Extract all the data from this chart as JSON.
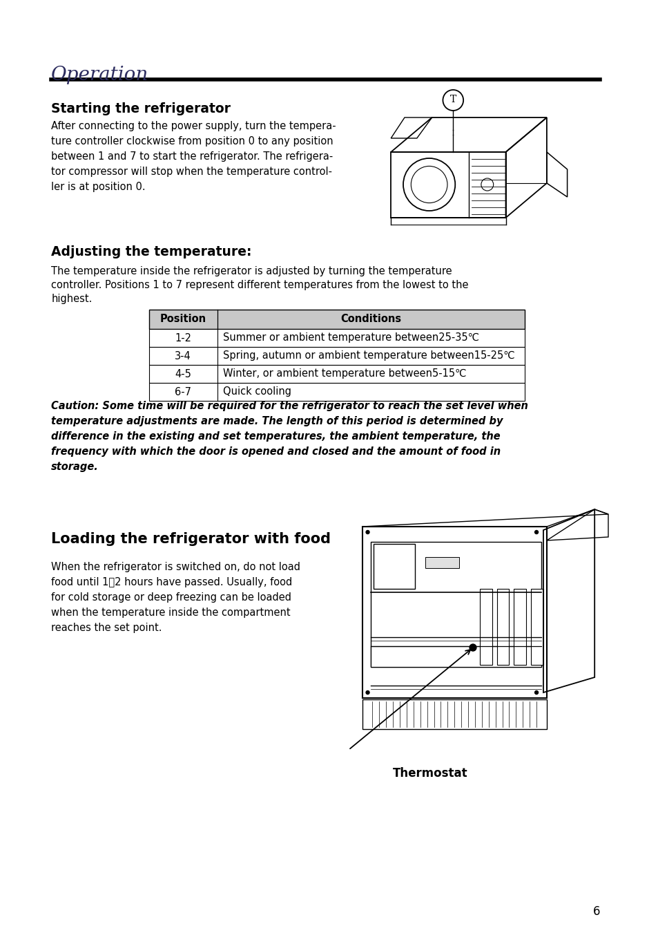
{
  "page_title": "Operation",
  "section1_title": "Starting the refrigerator",
  "section1_text": [
    "After connecting to the power supply, turn the tempera-",
    "ture controller clockwise from position 0 to any position",
    "between 1 and 7 to start the refrigerator. The refrigera-",
    "tor compressor will stop when the temperature control-",
    "ler is at position 0."
  ],
  "section2_title": "Adjusting the temperature:",
  "section2_text": [
    "The temperature inside the refrigerator is adjusted by turning the temperature",
    "controller. Positions 1 to 7 represent different temperatures from the lowest to the",
    "highest."
  ],
  "table_headers": [
    "Position",
    "Conditions"
  ],
  "table_rows": [
    [
      "1-2",
      "Summer or ambient temperature between25-35℃"
    ],
    [
      "3-4",
      "Spring, autumn or ambient temperature between15-25℃"
    ],
    [
      "4-5",
      "Winter, or ambient temperature between5-15℃"
    ],
    [
      "6-7",
      "Quick cooling"
    ]
  ],
  "caution_lines": [
    "Caution: Some time will be required for the refrigerator to reach the set level when",
    "temperature adjustments are made. The length of this period is determined by",
    "difference in the existing and set temperatures, the ambient temperature, the",
    "frequency with which the door is opened and closed and the amount of food in",
    "storage."
  ],
  "section3_title": "Loading the refrigerator with food",
  "section3_text": [
    "When the refrigerator is switched on, do not load",
    "food until 1～2 hours have passed. Usually, food",
    "for cold storage or deep freezing can be loaded",
    "when the temperature inside the compartment",
    "reaches the set point."
  ],
  "thermostat_label": "Thermostat",
  "page_number": "6",
  "bg_color": "#ffffff"
}
